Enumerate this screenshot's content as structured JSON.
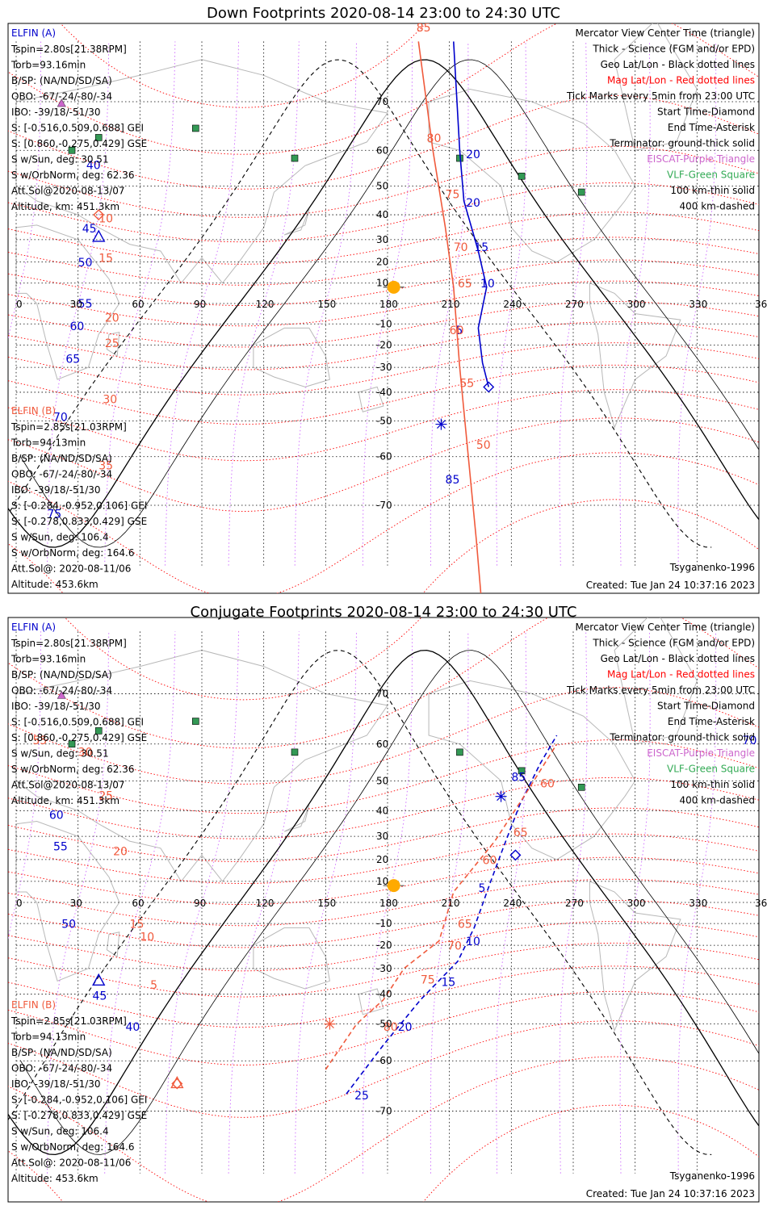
{
  "panels": [
    {
      "title": "Down Footprints 2020-08-14 23:00 to 24:30 UTC",
      "info_a": [
        "Tspin=2.80s[21.38RPM]",
        "Torb=93.16min",
        "B/SP: (NA/ND/SD/SA)",
        "OBO: -67/-24/-80/-34",
        "IBO: -39/18/-51/30",
        "S: [-0.516,0.509,0.688] GEI",
        "S: [0.860,-0.275,0.429] GSE",
        "S w/Sun, deg: 30.51",
        "S w/OrbNorm, deg: 62.36",
        "Att.Sol@2020-08-13/07",
        "Altitude, km: 451.3km"
      ],
      "info_b": [
        "Tspin=2.85s[21.03RPM]",
        "Torb=94.13min",
        "B/SP: (NA/ND/SD/SA)",
        "OBO: -67/-24/-80/-34",
        "IBO: -39/18/-51/30",
        "S: [-0.284,-0.952,0.106] GEI",
        "S: [-0.278,0.833,0.429] GSE",
        "S w/Sun, deg: 106.4",
        "S w/OrbNorm, deg: 164.6",
        "Att.Sol@: 2020-08-11/06",
        "Altitude: 453.6km"
      ]
    },
    {
      "title": "Conjugate Footprints 2020-08-14 23:00 to 24:30 UTC",
      "info_a": [
        "Tspin=2.80s[21.38RPM]",
        "Torb=93.16min",
        "B/SP: (NA/ND/SD/SA)",
        "OBO: -67/-24/-80/-34",
        "IBO: -39/18/-51/30",
        "S: [-0.516,0.509,0.688] GEI",
        "S: [0.860,-0.275,0.429] GSE",
        "S w/Sun, deg: 30.51",
        "S w/OrbNorm, deg: 62.36",
        "Att.Sol@2020-08-13/07",
        "Altitude, km: 451.3km"
      ],
      "info_b": [
        "Tspin=2.85s[21.03RPM]",
        "Torb=94.13min",
        "B/SP: (NA/ND/SD/SA)",
        "OBO: -67/-24/-80/-34",
        "IBO: -39/18/-51/30",
        "S: [-0.284,-0.952,0.106] GEI",
        "S: [-0.278,0.833,0.429] GSE",
        "S w/Sun, deg: 106.4",
        "S w/OrbNorm, deg: 164.6",
        "Att.Sol@: 2020-08-11/06",
        "Altitude: 453.6km"
      ]
    }
  ],
  "labels": {
    "elfin_a": "ELFIN (A)",
    "elfin_b": "ELFIN (B)",
    "model": "Tsyganenko-1996",
    "created": "Created: Tue Jan 24 10:37:16 2023"
  },
  "legend": [
    {
      "text": "Mercator View Center Time (triangle)",
      "color": "#000000"
    },
    {
      "text": "Thick - Science (FGM and/or EPD)",
      "color": "#000000"
    },
    {
      "text": "Geo Lat/Lon - Black dotted lines",
      "color": "#000000"
    },
    {
      "text": "Mag Lat/Lon - Red dotted lines",
      "color": "#ff0000"
    },
    {
      "text": "Tick Marks every 5min from 23:00 UTC",
      "color": "#000000"
    },
    {
      "text": "Start Time-Diamond",
      "color": "#000000"
    },
    {
      "text": "End Time-Asterisk",
      "color": "#000000"
    },
    {
      "text": "Terminator: ground-thick solid",
      "color": "#000000"
    },
    {
      "text": "EISCAT-Purple Triangle",
      "color": "#cc66cc"
    },
    {
      "text": "VLF-Green Square",
      "color": "#33aa55"
    },
    {
      "text": "100 km-thin solid",
      "color": "#000000"
    },
    {
      "text": "400 km-dashed",
      "color": "#000000"
    }
  ],
  "colors": {
    "elfin_a": "#0000cc",
    "elfin_b": "#f05a3c",
    "mag_grid": "#ff0000",
    "meridian": "#cc66ff",
    "vlf": "#339955",
    "sun": "#ffaa00",
    "land": "#b8b8b8"
  },
  "chart_data": [
    {
      "type": "map",
      "title": "Down Footprints 2020-08-14 23:00 to 24:30 UTC",
      "xlim": [
        0,
        360
      ],
      "ylim": [
        -80,
        80
      ],
      "lon_ticks": [
        0,
        30,
        60,
        90,
        120,
        150,
        180,
        210,
        240,
        270,
        300,
        330,
        360
      ],
      "lat_ticks": [
        70,
        60,
        50,
        40,
        30,
        20,
        10,
        -10,
        -20,
        -30,
        -40,
        -50,
        -60,
        -70
      ],
      "sun": [
        183,
        8
      ],
      "vlf_sites": [
        [
          87,
          65
        ],
        [
          135,
          58
        ],
        [
          215,
          58
        ],
        [
          245,
          53
        ],
        [
          274,
          48
        ],
        [
          40,
          63
        ],
        [
          27,
          60
        ]
      ],
      "series": [
        {
          "name": "ELFIN (A)",
          "style": "solid",
          "points": [
            [
              229,
              -38
            ],
            [
              226,
              -28
            ],
            [
              224,
              -12
            ],
            [
              228,
              8
            ],
            [
              224,
              25
            ],
            [
              217,
              45
            ],
            [
              215,
              60
            ],
            [
              212,
              78
            ]
          ],
          "labels": [
            [
              218,
              58,
              "20"
            ],
            [
              218,
              43,
              "20"
            ],
            [
              222,
              25,
              "15"
            ],
            [
              225,
              8,
              "10"
            ],
            [
              213,
              -15,
              "5"
            ],
            [
              30,
              -2,
              "55"
            ],
            [
              26,
              -13,
              "60"
            ],
            [
              24,
              -28,
              "65"
            ],
            [
              18,
              -50,
              "70"
            ],
            [
              15,
              -72,
              "75"
            ],
            [
              34,
              55,
              "40"
            ],
            [
              32,
              33,
              "45"
            ],
            [
              30,
              18,
              "50"
            ],
            [
              208,
              -66,
              "85"
            ]
          ],
          "start": [
            229,
            -38
          ],
          "end": [
            206,
            -51
          ],
          "center": [
            40,
            31
          ]
        },
        {
          "name": "ELFIN (B)",
          "style": "solid",
          "points": [
            [
              195,
              78
            ],
            [
              202,
              60
            ],
            [
              208,
              35
            ],
            [
              212,
              8
            ],
            [
              215,
              -30
            ],
            [
              223,
              -75
            ],
            [
              226,
              -82
            ]
          ],
          "labels": [
            [
              194,
              79,
              "85"
            ],
            [
              199,
              62,
              "80"
            ],
            [
              208,
              46,
              "75"
            ],
            [
              212,
              25,
              "70"
            ],
            [
              214,
              8,
              "65"
            ],
            [
              210,
              -15,
              "60"
            ],
            [
              215,
              -38,
              "55"
            ],
            [
              223,
              -58,
              "50"
            ],
            [
              40,
              37,
              "10"
            ],
            [
              40,
              20,
              "15"
            ],
            [
              43,
              -9,
              "20"
            ],
            [
              43,
              -21,
              "25"
            ],
            [
              42,
              -44,
              "30"
            ],
            [
              40,
              -63,
              "35"
            ]
          ],
          "start": [
            40,
            40
          ],
          "end": [
            226,
            -82
          ],
          "center": [
            226,
            -82
          ]
        }
      ]
    },
    {
      "type": "map",
      "title": "Conjugate Footprints 2020-08-14 23:00 to 24:30 UTC",
      "xlim": [
        0,
        360
      ],
      "ylim": [
        -80,
        80
      ],
      "lon_ticks": [
        0,
        30,
        60,
        90,
        120,
        150,
        180,
        210,
        240,
        270,
        300,
        330,
        360
      ],
      "lat_ticks": [
        70,
        60,
        50,
        40,
        30,
        20,
        10,
        -10,
        -20,
        -30,
        -40,
        -50,
        -60,
        -70
      ],
      "sun": [
        183,
        8
      ],
      "vlf_sites": [
        [
          87,
          65
        ],
        [
          135,
          58
        ],
        [
          215,
          58
        ],
        [
          245,
          53
        ],
        [
          274,
          48
        ],
        [
          40,
          63
        ],
        [
          27,
          60
        ]
      ],
      "series": [
        {
          "name": "ELFIN (A)",
          "style": "dashed",
          "points": [
            [
              160,
              -67
            ],
            [
              178,
              -56
            ],
            [
              196,
              -42
            ],
            [
              214,
              -27
            ],
            [
              222,
              -12
            ],
            [
              230,
              10
            ],
            [
              236,
              25
            ],
            [
              244,
              42
            ],
            [
              254,
              55
            ],
            [
              262,
              62
            ]
          ],
          "labels": [
            [
              164,
              -68,
              "25"
            ],
            [
              185,
              -52,
              "20"
            ],
            [
              206,
              -37,
              "15"
            ],
            [
              218,
              -20,
              "10"
            ],
            [
              224,
              5,
              "5"
            ],
            [
              240,
              50,
              "85"
            ],
            [
              352,
              60,
              "70"
            ],
            [
              16,
              37,
              "60"
            ],
            [
              18,
              24,
              "55"
            ],
            [
              22,
              -12,
              "50"
            ],
            [
              37,
              -42,
              "45"
            ],
            [
              53,
              -52,
              "40"
            ]
          ],
          "start": [
            242,
            22
          ],
          "end": [
            235,
            45
          ],
          "center": [
            40,
            -35
          ]
        },
        {
          "name": "ELFIN (B)",
          "style": "dashed",
          "points": [
            [
              150,
              -62
            ],
            [
              165,
              -50
            ],
            [
              178,
              -42
            ],
            [
              188,
              -30
            ],
            [
              205,
              -18
            ],
            [
              212,
              5
            ],
            [
              232,
              28
            ],
            [
              248,
              47
            ],
            [
              262,
              60
            ]
          ],
          "labels": [
            [
              178,
              -52,
              "80"
            ],
            [
              196,
              -36,
              "75"
            ],
            [
              209,
              -22,
              "70"
            ],
            [
              214,
              -12,
              "65"
            ],
            [
              226,
              18,
              "60"
            ],
            [
              241,
              30,
              "65"
            ],
            [
              254,
              48,
              "60"
            ],
            [
              40,
              44,
              "25"
            ],
            [
              47,
              22,
              "20"
            ],
            [
              55,
              -12,
              "15"
            ],
            [
              60,
              -18,
              "10"
            ],
            [
              65,
              -38,
              "5"
            ],
            [
              8,
              60,
              "55"
            ],
            [
              30,
              57,
              "30"
            ]
          ],
          "start": [
            78,
            -65
          ],
          "end": [
            152,
            -50
          ],
          "center": [
            78,
            -65
          ]
        }
      ]
    }
  ]
}
